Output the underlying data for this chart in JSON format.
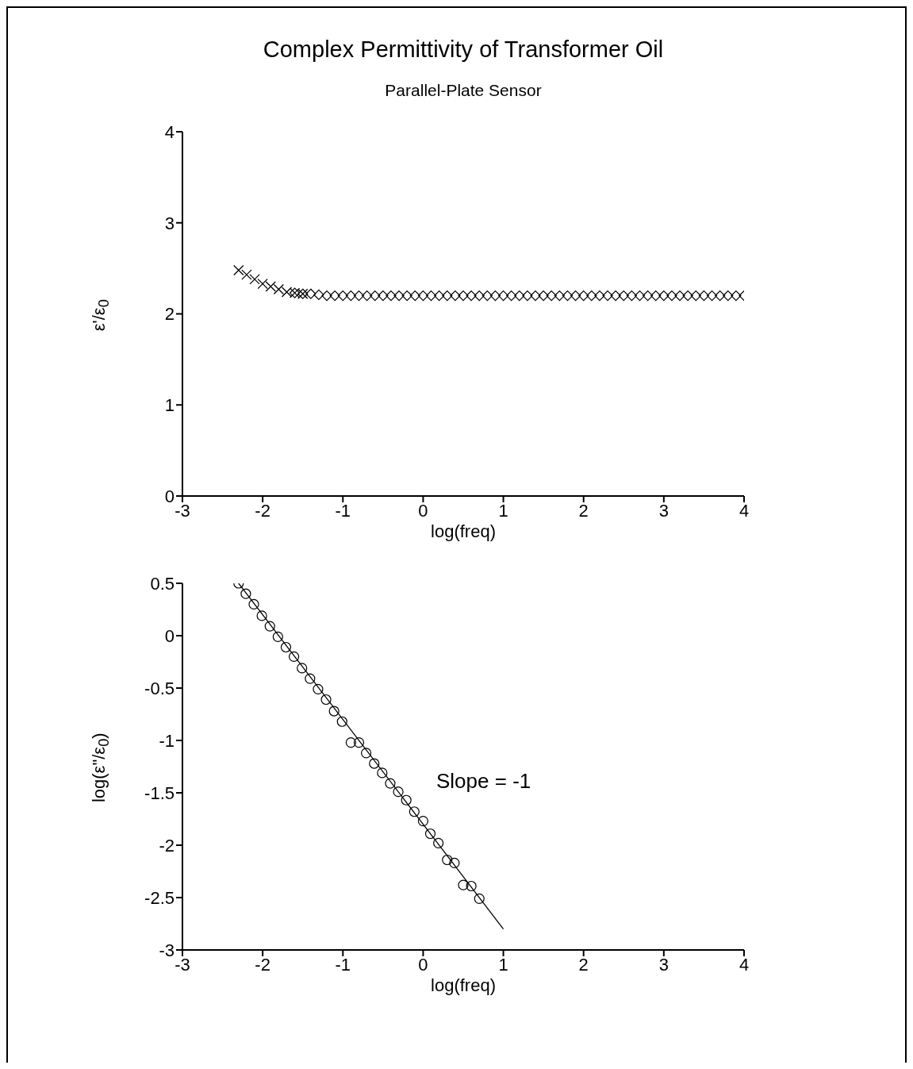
{
  "chart_data": [
    {
      "type": "scatter",
      "title": "Complex Permittivity of Transformer Oil",
      "subtitle": "Parallel-Plate Sensor",
      "xlabel": "log(freq)",
      "ylabel": "ε'/ε$_{0}$",
      "xlim": [
        -3,
        4
      ],
      "xticks": [
        -3,
        -2,
        -1,
        0,
        1,
        2,
        3,
        4
      ],
      "ylim": [
        0,
        4
      ],
      "yticks": [
        0,
        1,
        2,
        3,
        4
      ],
      "grid": false,
      "legend": false,
      "series": [
        {
          "color": "#000000",
          "marker": "cross",
          "x": [
            -2.3,
            -2.2,
            -2.1,
            -2.0,
            -1.9,
            -1.8,
            -1.7,
            -1.6,
            -1.5
          ],
          "values": [
            2.48,
            2.43,
            2.38,
            2.33,
            2.3,
            2.27,
            2.24,
            2.23,
            2.22
          ]
        },
        {
          "color": "#000000",
          "marker": "diamond",
          "x": [
            -1.6,
            -1.5,
            -1.4,
            -1.3,
            -1.2,
            -1.1,
            -1.0,
            -0.9,
            -0.8,
            -0.7,
            -0.6,
            -0.5,
            -0.4,
            -0.3,
            -0.2,
            -0.1,
            0.0,
            0.1,
            0.2,
            0.3,
            0.4,
            0.5,
            0.6,
            0.7,
            0.8,
            0.9,
            1.0,
            1.1,
            1.2,
            1.3,
            1.4,
            1.5,
            1.6,
            1.7,
            1.8,
            1.9,
            2.0,
            2.1,
            2.2,
            2.3,
            2.4,
            2.5,
            2.6,
            2.7,
            2.8,
            2.9,
            3.0,
            3.1,
            3.2,
            3.3,
            3.4,
            3.5,
            3.6,
            3.7,
            3.8,
            3.9,
            4.0
          ],
          "values": [
            2.23,
            2.22,
            2.22,
            2.21,
            2.2,
            2.2,
            2.2,
            2.2,
            2.2,
            2.2,
            2.2,
            2.2,
            2.2,
            2.2,
            2.2,
            2.2,
            2.2,
            2.2,
            2.2,
            2.2,
            2.2,
            2.2,
            2.2,
            2.2,
            2.2,
            2.2,
            2.2,
            2.2,
            2.2,
            2.2,
            2.2,
            2.2,
            2.2,
            2.2,
            2.2,
            2.2,
            2.2,
            2.2,
            2.2,
            2.2,
            2.2,
            2.2,
            2.2,
            2.2,
            2.2,
            2.2,
            2.2,
            2.2,
            2.2,
            2.2,
            2.2,
            2.2,
            2.2,
            2.2,
            2.2,
            2.2,
            2.2
          ]
        }
      ]
    },
    {
      "type": "scatter",
      "xlabel": "log(freq)",
      "ylabel": "log(ε\"/ε$_{0}$)",
      "xlim": [
        -3,
        4
      ],
      "xticks": [
        -3,
        -2,
        -1,
        0,
        1,
        2,
        3,
        4
      ],
      "ylim": [
        -3,
        0.5
      ],
      "yticks": [
        -3,
        -2.5,
        -2,
        -1.5,
        -1,
        -0.5,
        0,
        0.5
      ],
      "grid": false,
      "legend": false,
      "annotations": [
        "Slope = -1"
      ],
      "series": [
        {
          "type": "line",
          "color": "#000000",
          "marker": "none",
          "line_style": "solid",
          "x": [
            -2.3,
            1.0
          ],
          "values": [
            0.5,
            -2.8
          ]
        },
        {
          "color": "#000000",
          "marker": "circle",
          "x": [
            -2.3,
            -2.21,
            -2.11,
            -2.01,
            -1.91,
            -1.81,
            -1.71,
            -1.61,
            -1.51,
            -1.41,
            -1.31,
            -1.21,
            -1.11,
            -1.01,
            -0.9,
            -0.8,
            -0.71,
            -0.61,
            -0.51,
            -0.41,
            -0.31,
            -0.21,
            -0.11,
            0.0,
            0.09,
            0.19,
            0.3,
            0.39,
            0.5,
            0.6,
            0.7
          ],
          "values": [
            0.5,
            0.4,
            0.3,
            0.19,
            0.09,
            -0.01,
            -0.11,
            -0.2,
            -0.31,
            -0.41,
            -0.51,
            -0.61,
            -0.72,
            -0.82,
            -1.02,
            -1.02,
            -1.12,
            -1.22,
            -1.31,
            -1.41,
            -1.49,
            -1.57,
            -1.68,
            -1.77,
            -1.89,
            -1.98,
            -2.14,
            -2.17,
            -2.38,
            -2.39,
            -2.51
          ]
        }
      ]
    }
  ]
}
